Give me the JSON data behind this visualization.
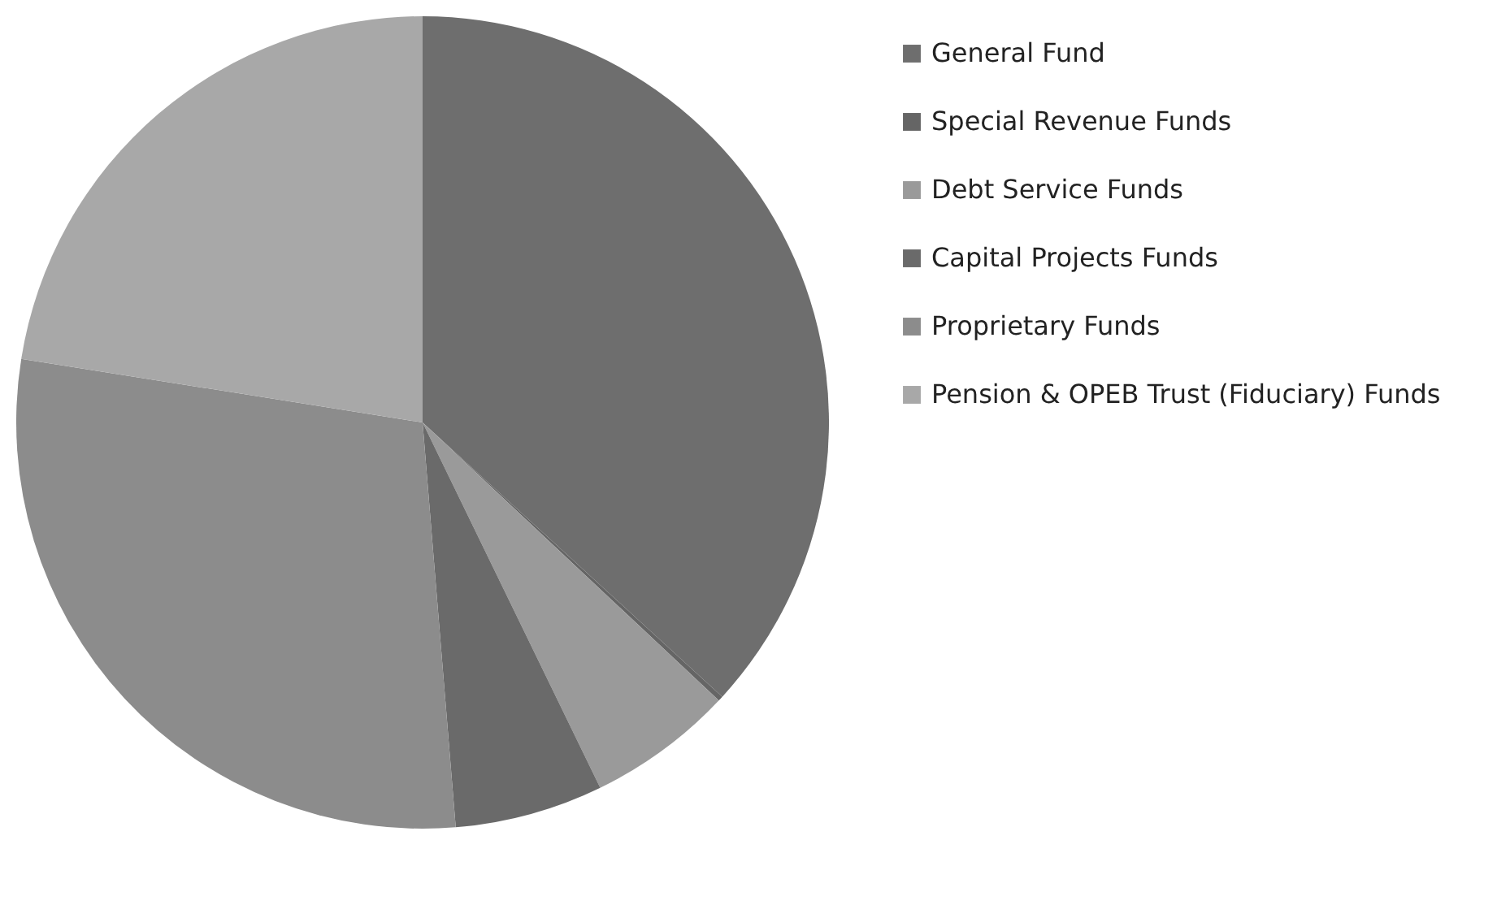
{
  "chart_data": {
    "type": "pie",
    "categories": [
      "General Fund",
      "Special Revenue Funds",
      "Debt Service Funds",
      "Capital Projects Funds",
      "Proprietary Funds",
      "Pension & OPEB Trust (Fiduciary) Funds"
    ],
    "values": [
      36.8,
      0.2,
      5.8,
      5.9,
      28.8,
      22.5
    ],
    "colors": [
      "#6e6e6e",
      "#656565",
      "#9a9a9a",
      "#6a6a6a",
      "#8c8c8c",
      "#a8a8a8"
    ],
    "legend": "right"
  }
}
